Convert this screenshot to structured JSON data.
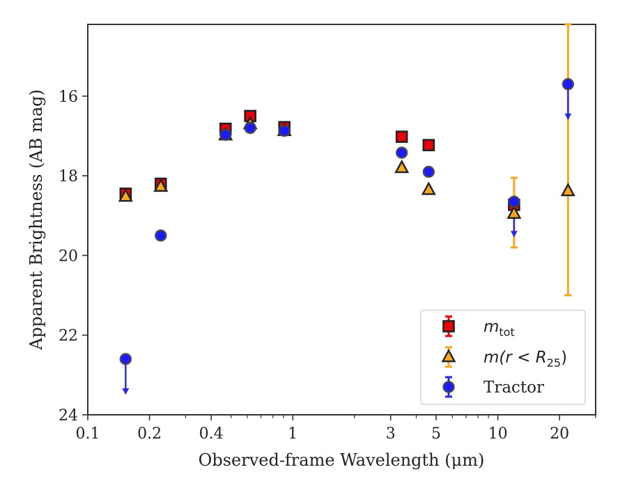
{
  "chart_data": {
    "type": "scatter",
    "xlabel": "Observed-frame Wavelength (μm)",
    "ylabel": "Apparent Brightness (AB mag)",
    "xscale": "log",
    "xlim": [
      0.1,
      30
    ],
    "ylim": [
      24,
      14.2
    ],
    "y_inverted": true,
    "x_ticks": [
      {
        "value": 0.1,
        "label": "0.1"
      },
      {
        "value": 0.2,
        "label": "0.2"
      },
      {
        "value": 0.4,
        "label": "0.4"
      },
      {
        "value": 1,
        "label": "1"
      },
      {
        "value": 3,
        "label": "3"
      },
      {
        "value": 5,
        "label": "5"
      },
      {
        "value": 10,
        "label": "10"
      },
      {
        "value": 20,
        "label": "20"
      }
    ],
    "y_ticks": [
      {
        "value": 16,
        "label": "16"
      },
      {
        "value": 18,
        "label": "18"
      },
      {
        "value": 20,
        "label": "20"
      },
      {
        "value": 22,
        "label": "22"
      },
      {
        "value": 24,
        "label": "24"
      }
    ],
    "grid": false,
    "legend_position": "lower-right",
    "series": [
      {
        "name": "m_tot",
        "marker": "square",
        "color": "#e8000b",
        "err_color": "#e8000b",
        "points": [
          {
            "x": 0.153,
            "y": 18.45
          },
          {
            "x": 0.227,
            "y": 18.2
          },
          {
            "x": 0.47,
            "y": 16.82
          },
          {
            "x": 0.62,
            "y": 16.5
          },
          {
            "x": 0.91,
            "y": 16.78
          },
          {
            "x": 3.4,
            "y": 17.02
          },
          {
            "x": 4.6,
            "y": 17.23
          },
          {
            "x": 12.0,
            "y": 18.73
          }
        ]
      },
      {
        "name": "m(r < R_25)",
        "marker": "triangle",
        "color": "#f5a623",
        "err_color": "#f5a623",
        "points": [
          {
            "x": 0.153,
            "y": 18.52
          },
          {
            "x": 0.227,
            "y": 18.27
          },
          {
            "x": 0.47,
            "y": 16.98
          },
          {
            "x": 0.62,
            "y": 16.7
          },
          {
            "x": 0.91,
            "y": 16.87
          },
          {
            "x": 3.4,
            "y": 17.8
          },
          {
            "x": 4.6,
            "y": 18.35
          },
          {
            "x": 12.0,
            "y": 18.95,
            "err_lo": 18.05,
            "err_hi": 19.8
          },
          {
            "x": 22.0,
            "y": 18.38,
            "err_lo": 14.2,
            "err_hi": 21.0
          }
        ]
      },
      {
        "name": "Tractor",
        "marker": "circle",
        "color": "#1a1aff",
        "err_color": "#2a2add",
        "points": [
          {
            "x": 0.153,
            "y": 22.6,
            "upper_limit": true
          },
          {
            "x": 0.227,
            "y": 19.5
          },
          {
            "x": 0.47,
            "y": 16.97
          },
          {
            "x": 0.62,
            "y": 16.8
          },
          {
            "x": 0.91,
            "y": 16.87
          },
          {
            "x": 3.4,
            "y": 17.42
          },
          {
            "x": 4.6,
            "y": 17.9
          },
          {
            "x": 12.0,
            "y": 18.65,
            "upper_limit": true
          },
          {
            "x": 22.0,
            "y": 15.7,
            "upper_limit": true
          }
        ]
      }
    ],
    "legend": [
      {
        "label_main": "m",
        "label_sub": "tot",
        "marker": "square"
      },
      {
        "label_main": "m(r < R",
        "label_sub": "25",
        "label_tail": ")",
        "marker": "triangle"
      },
      {
        "label_main": "Tractor",
        "label_sub": "",
        "marker": "circle"
      }
    ]
  }
}
